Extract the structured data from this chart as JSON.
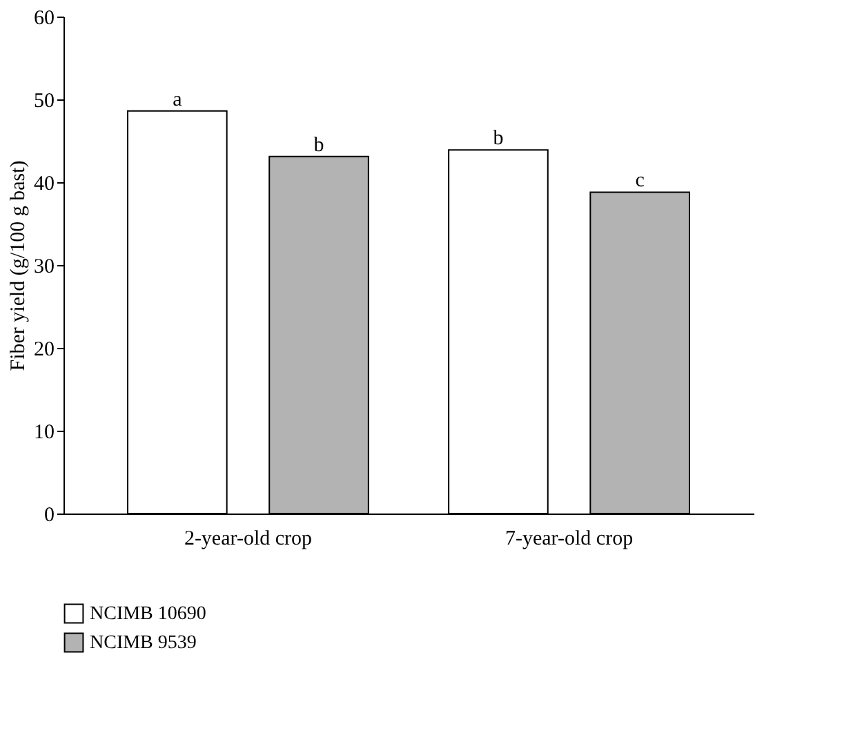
{
  "chart_data": {
    "type": "bar",
    "ylabel": "Fiber yield (g/100 g bast)",
    "categories": [
      "2-year-old crop",
      "7-year-old crop"
    ],
    "series": [
      {
        "name": "NCIMB 10690",
        "color": "#ffffff",
        "values": [
          48.6,
          43.9
        ],
        "value_labels": [
          "a",
          "b"
        ]
      },
      {
        "name": "NCIMB 9539",
        "color": "#b3b3b3",
        "values": [
          43.1,
          38.8
        ],
        "value_labels": [
          "b",
          "c"
        ]
      }
    ],
    "ylim": [
      0,
      60
    ],
    "yticks": [
      0,
      10,
      20,
      30,
      40,
      50,
      60
    ],
    "grid": false,
    "legend": "bottom left"
  }
}
